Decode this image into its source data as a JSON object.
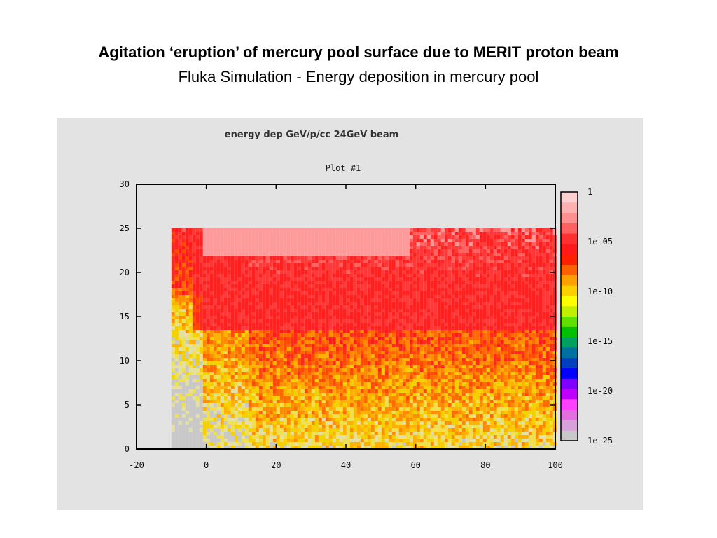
{
  "slide": {
    "title": "Agitation ‘eruption’ of mercury pool surface due to MERIT proton beam",
    "subtitle": "Fluka Simulation - Energy deposition in mercury pool"
  },
  "chart_data": {
    "type": "heatmap",
    "title": "energy dep GeV/p/cc 24GeV beam",
    "subtitle": "Plot #1",
    "xlim": [
      -20,
      100
    ],
    "ylim": [
      0,
      30
    ],
    "x_ticks": [
      -20,
      0,
      20,
      40,
      60,
      80,
      100
    ],
    "y_ticks": [
      0,
      5,
      10,
      15,
      20,
      25,
      30
    ],
    "data_extent": {
      "x": [
        -10,
        100
      ],
      "y": [
        0,
        25
      ]
    },
    "colorbar": {
      "scale": "log",
      "range": [
        1e-25,
        1
      ],
      "tick_labels": [
        "1",
        "1e-05",
        "1e-10",
        "1e-15",
        "1e-20",
        "1e-25"
      ],
      "colors": [
        "#c8c8c8",
        "#d8a0d8",
        "#e070e0",
        "#ff40ff",
        "#c000ff",
        "#8000ff",
        "#0000ff",
        "#0040c0",
        "#0070a0",
        "#00a060",
        "#00c000",
        "#60e000",
        "#c0f000",
        "#ffff00",
        "#ffd000",
        "#ffa000",
        "#ff6000",
        "#ff2000",
        "#ff1a1a",
        "#ff3030",
        "#ff6060",
        "#ff9090",
        "#ffb0b0",
        "#ffd0d0"
      ]
    },
    "features": [
      {
        "name": "high-deposition region near surface",
        "x": [
          0,
          100
        ],
        "y": [
          15,
          25
        ],
        "level": 0.001
      },
      {
        "name": "beam core",
        "x": [
          2,
          62
        ],
        "y": [
          20,
          25
        ],
        "level": 0.3
      }
    ]
  }
}
